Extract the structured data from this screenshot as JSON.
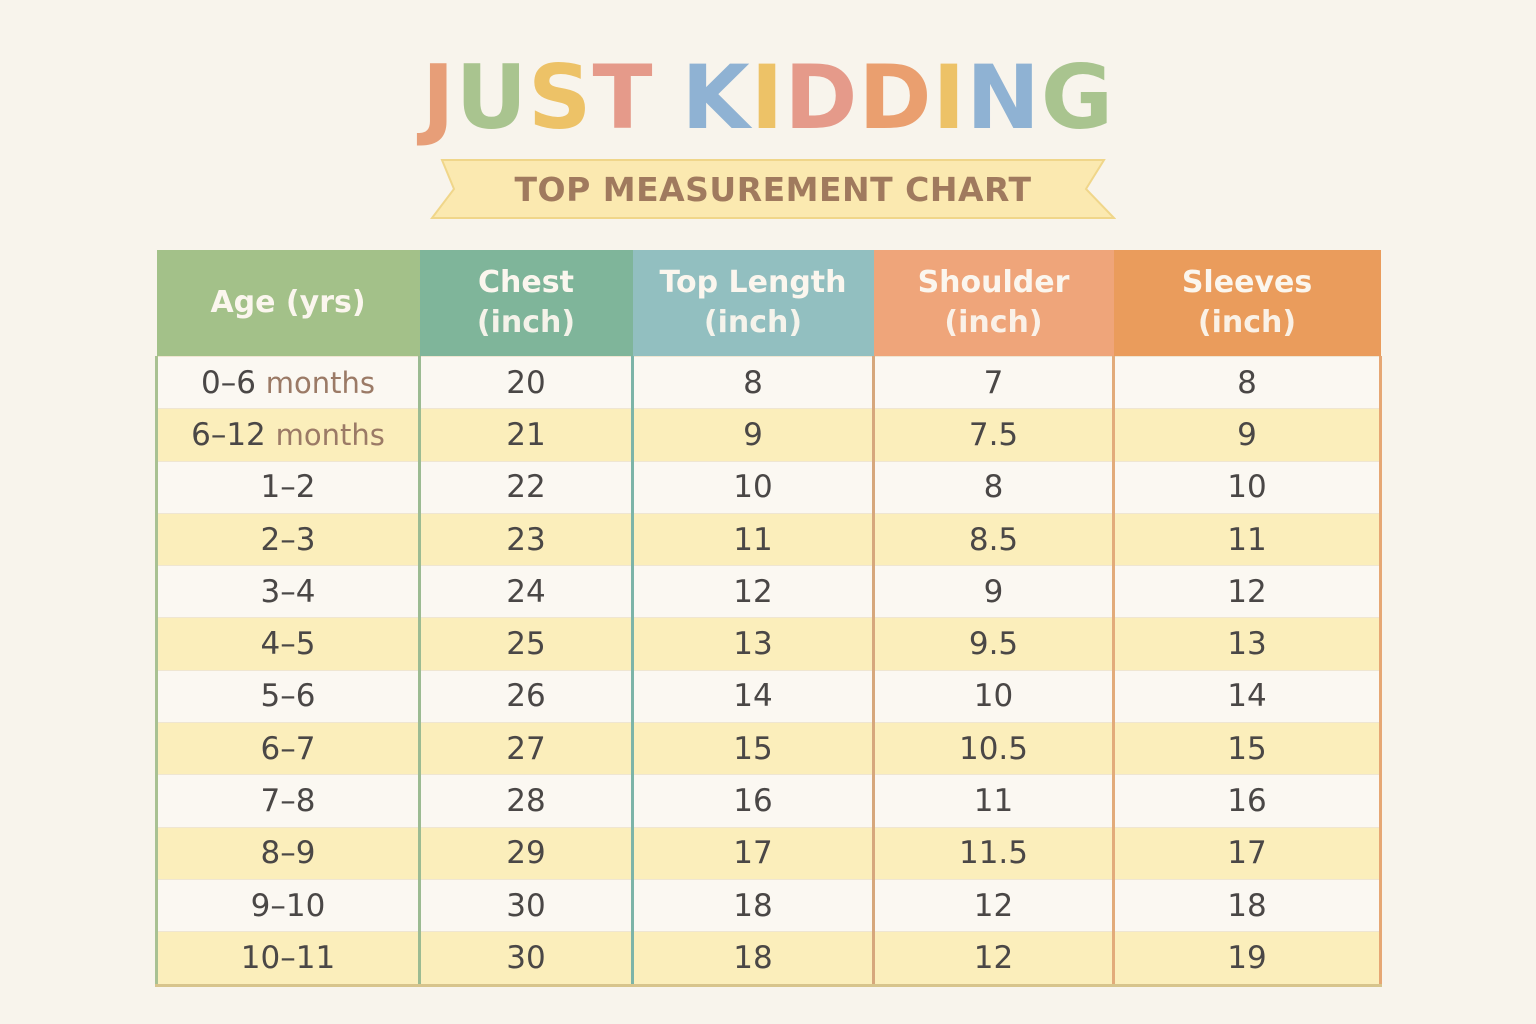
{
  "brand": {
    "letters": [
      {
        "ch": "J",
        "color": "#e79e78"
      },
      {
        "ch": "U",
        "color": "#a9c48f"
      },
      {
        "ch": "S",
        "color": "#edc267"
      },
      {
        "ch": "T",
        "color": "#e59a8a"
      },
      {
        "ch": " ",
        "color": "#ffffff"
      },
      {
        "ch": "K",
        "color": "#8fb2d3"
      },
      {
        "ch": "I",
        "color": "#edc267"
      },
      {
        "ch": "D",
        "color": "#e59a8a"
      },
      {
        "ch": "D",
        "color": "#ea9f6f"
      },
      {
        "ch": "I",
        "color": "#edc267"
      },
      {
        "ch": "N",
        "color": "#8fb2d3"
      },
      {
        "ch": "G",
        "color": "#a9c48f"
      }
    ],
    "text": "JUST KIDDING"
  },
  "ribbon": {
    "label": "TOP MEASUREMENT CHART",
    "fill": "#fbe9b0",
    "stroke": "#f0d68a"
  },
  "table": {
    "headers": [
      {
        "line1": "Age (yrs)",
        "line2": "",
        "color": "#a3c189"
      },
      {
        "line1": "Chest",
        "line2": "(inch)",
        "color": "#7fb59a"
      },
      {
        "line1": "Top Length",
        "line2": "(inch)",
        "color": "#92bfc0"
      },
      {
        "line1": "Shoulder",
        "line2": "(inch)",
        "color": "#efa57a"
      },
      {
        "line1": "Sleeves",
        "line2": "(inch)",
        "color": "#ea9c5c"
      }
    ],
    "rows": [
      {
        "age": "0–6",
        "age_suffix": "months",
        "chest": "20",
        "length": "8",
        "shoulder": "7",
        "sleeves": "8"
      },
      {
        "age": "6–12",
        "age_suffix": "months",
        "chest": "21",
        "length": "9",
        "shoulder": "7.5",
        "sleeves": "9"
      },
      {
        "age": "1–2",
        "age_suffix": "",
        "chest": "22",
        "length": "10",
        "shoulder": "8",
        "sleeves": "10"
      },
      {
        "age": "2–3",
        "age_suffix": "",
        "chest": "23",
        "length": "11",
        "shoulder": "8.5",
        "sleeves": "11"
      },
      {
        "age": "3–4",
        "age_suffix": "",
        "chest": "24",
        "length": "12",
        "shoulder": "9",
        "sleeves": "12"
      },
      {
        "age": "4–5",
        "age_suffix": "",
        "chest": "25",
        "length": "13",
        "shoulder": "9.5",
        "sleeves": "13"
      },
      {
        "age": "5–6",
        "age_suffix": "",
        "chest": "26",
        "length": "14",
        "shoulder": "10",
        "sleeves": "14"
      },
      {
        "age": "6–7",
        "age_suffix": "",
        "chest": "27",
        "length": "15",
        "shoulder": "10.5",
        "sleeves": "15"
      },
      {
        "age": "7–8",
        "age_suffix": "",
        "chest": "28",
        "length": "16",
        "shoulder": "11",
        "sleeves": "16"
      },
      {
        "age": "8–9",
        "age_suffix": "",
        "chest": "29",
        "length": "17",
        "shoulder": "11.5",
        "sleeves": "17"
      },
      {
        "age": "9–10",
        "age_suffix": "",
        "chest": "30",
        "length": "18",
        "shoulder": "12",
        "sleeves": "18"
      },
      {
        "age": "10–11",
        "age_suffix": "",
        "chest": "30",
        "length": "18",
        "shoulder": "12",
        "sleeves": "19"
      }
    ]
  }
}
